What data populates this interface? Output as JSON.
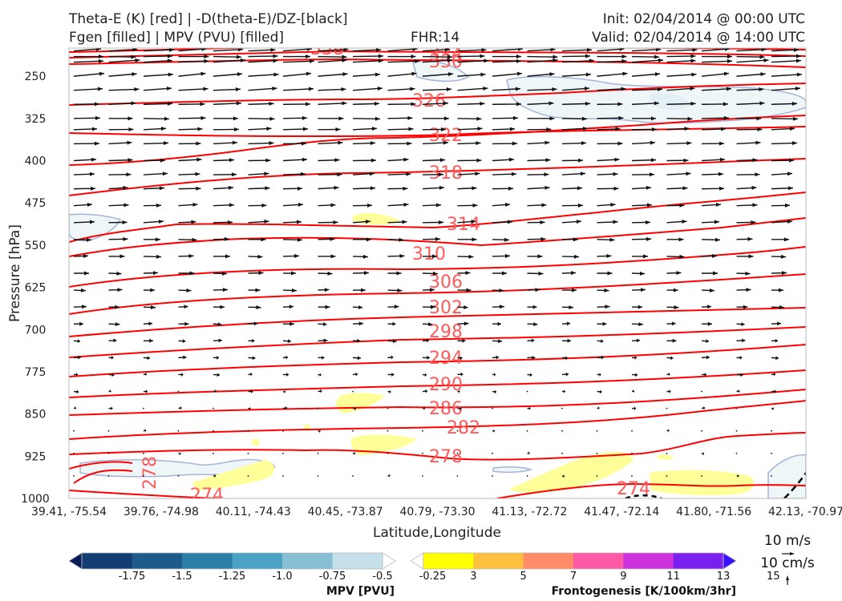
{
  "header": {
    "title_line1": "Theta-E (K) [red] | -D(theta-E)/DZ-[black]",
    "title_line2": "Fgen [filled] | MPV (PVU) [filled]",
    "fhr": "FHR:14",
    "init": "Init: 02/04/2014 @ 00:00 UTC",
    "valid": "Valid: 02/04/2014 @ 14:00 UTC"
  },
  "chart_data": {
    "type": "cross-section",
    "xlabel": "Latitude,Longitude",
    "ylabel": "Pressure [hPa]",
    "x_ticks": [
      "39.41, -75.54",
      "39.76, -74.98",
      "40.11, -74.43",
      "40.45, -73.87",
      "40.79, -73.30",
      "41.13, -72.72",
      "41.47, -72.14",
      "41.80, -71.56",
      "42.13, -70.97"
    ],
    "y_ticks": [
      250,
      325,
      400,
      475,
      550,
      625,
      700,
      775,
      850,
      925,
      1000
    ],
    "ylim": [
      200,
      1000
    ],
    "grid": false,
    "theta_e_contours": [
      {
        "value": 338,
        "label": "338"
      },
      {
        "value": 334,
        "label": "334"
      },
      {
        "value": 330,
        "label": "330"
      },
      {
        "value": 326,
        "label": "326"
      },
      {
        "value": 322,
        "label": "322"
      },
      {
        "value": 318,
        "label": "318"
      },
      {
        "value": 314,
        "label": "314"
      },
      {
        "value": 310,
        "label": "310"
      },
      {
        "value": 306,
        "label": "306"
      },
      {
        "value": 302,
        "label": "302"
      },
      {
        "value": 298,
        "label": "298"
      },
      {
        "value": 294,
        "label": "294"
      },
      {
        "value": 290,
        "label": "290"
      },
      {
        "value": 286,
        "label": "286"
      },
      {
        "value": 282,
        "label": "282"
      },
      {
        "value": 278,
        "label": "278"
      },
      {
        "value": 274,
        "label": "274"
      }
    ],
    "theta_e_color": "#ff0000",
    "arrow_color": "#111111",
    "mpv_colorbar": {
      "label": "MPV [PVU]",
      "ticks": [
        "-1.75",
        "-1.5",
        "-1.25",
        "-1.0",
        "-0.75",
        "-0.5",
        "-0.25"
      ],
      "colors": [
        "#081d58",
        "#123d73",
        "#1e5a8c",
        "#2a7fa6",
        "#4ba3c3",
        "#86bfd4",
        "#c5e0ea",
        "#ffffff"
      ]
    },
    "fgen_colorbar": {
      "label": "Frontogenesis [K/100km/3hr]",
      "ticks": [
        "3",
        "5",
        "7",
        "9",
        "11",
        "13",
        "15"
      ],
      "colors": [
        "#ffffff",
        "#ffff00",
        "#ffc040",
        "#ff8c66",
        "#ff5aaa",
        "#cc33dd",
        "#7a20f0",
        "#3a10ff"
      ]
    },
    "reference_vectors": [
      "10 m/s",
      "10 cm/s"
    ]
  }
}
